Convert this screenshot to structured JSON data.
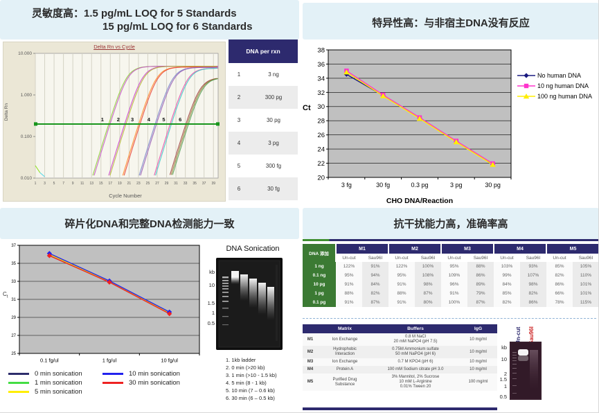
{
  "colors": {
    "title_bg": "#e3f1f7",
    "navy": "#2d2a6e",
    "green_cell": "#3b7a33",
    "threshold_green": "#18951c",
    "plot_gray": "#c0c0c0",
    "amp_bg": "#f7f6ee"
  },
  "quad_tl": {
    "title1": "灵敏度高：1.5 pg/mL LOQ for 5 Standards",
    "title2": "15 pg/mL LOQ for 6 Standards",
    "dna_table": {
      "header": "DNA per rxn",
      "rows": [
        {
          "num": "1",
          "amt": "3 ng"
        },
        {
          "num": "2",
          "amt": "300 pg"
        },
        {
          "num": "3",
          "amt": "30 pg"
        },
        {
          "num": "4",
          "amt": "3 pg"
        },
        {
          "num": "5",
          "amt": "300 fg"
        },
        {
          "num": "6",
          "amt": "30 fg"
        }
      ]
    }
  },
  "quad_tr": {
    "title": "特异性高：与非宿主DNA没有反应"
  },
  "quad_bl": {
    "title": "碎片化DNA和完整DNA检测能力一致",
    "gel": {
      "title": "DNA Sonication",
      "kb_labels": [
        "kb",
        "10",
        "1.5",
        "1",
        "0.5"
      ],
      "caption": [
        "1. 1kb ladder",
        "2. 0 min (>20 kb)",
        "3. 1 min (>10 - 1.5 kb)",
        "4. 5 min (8 - 1 kb)",
        "5. 10 min (7 – 0.6 kb)",
        "6. 30 min (6 – 0.5 kb)"
      ]
    }
  },
  "quad_br": {
    "title": "抗干扰能力高，准确率高",
    "interference_table": {
      "corner": "DNA 添加",
      "groups": [
        "M1",
        "M2",
        "M3",
        "M4",
        "M5"
      ],
      "subcols": [
        "Un-cut",
        "Sau96I"
      ],
      "rows": [
        {
          "label": "1 ng",
          "values": [
            "122%",
            "91%",
            "122%",
            "100%",
            "95%",
            "88%",
            "103%",
            "93%",
            "85%",
            "105%"
          ]
        },
        {
          "label": "0.1 ng",
          "values": [
            "95%",
            "94%",
            "95%",
            "108%",
            "109%",
            "86%",
            "99%",
            "107%",
            "82%",
            "110%"
          ]
        },
        {
          "label": "10 pg",
          "values": [
            "91%",
            "84%",
            "91%",
            "98%",
            "96%",
            "89%",
            "84%",
            "98%",
            "86%",
            "101%"
          ]
        },
        {
          "label": "1 pg",
          "values": [
            "88%",
            "82%",
            "88%",
            "87%",
            "91%",
            "79%",
            "85%",
            "82%",
            "66%",
            "101%"
          ]
        },
        {
          "label": "0.1 pg",
          "values": [
            "91%",
            "87%",
            "91%",
            "80%",
            "100%",
            "87%",
            "82%",
            "86%",
            "78%",
            "115%"
          ]
        }
      ]
    },
    "matrix_table": {
      "headers": [
        "",
        "Matrix",
        "Buffers",
        "IgG"
      ],
      "rows": [
        {
          "id": "M1",
          "matrix": "Ion Exchange",
          "buffers": "0.8 M NaCl\n20 mM NaPO4 (pH 7.5)",
          "igg": "10 mg/ml"
        },
        {
          "id": "M2",
          "matrix": "Hydrophobic\nInteraction",
          "buffers": "0.75M Ammonium sulfate\n50 mM NaPO4 (pH 6)",
          "igg": "10 mg/ml"
        },
        {
          "id": "M3",
          "matrix": "Ion Exchange",
          "buffers": "0.7 M KPO4 (pH 6)",
          "igg": "10 mg/ml"
        },
        {
          "id": "M4",
          "matrix": "Protein A",
          "buffers": "100 mM Sodium citrate pH 3.0",
          "igg": "10 mg/ml"
        },
        {
          "id": "M5",
          "matrix": "Purified Drug\nSubstance",
          "buffers": "3% Mannitol, 2% Sucrose\n10 mM L-Arginine\n0.01% Tween 20",
          "igg": "100 mg/ml"
        }
      ]
    },
    "gel": {
      "lane_labels": [
        "Un-cut",
        "Sau96I"
      ],
      "lane_label_colors": [
        "#2d2a6e",
        "#cc2222"
      ],
      "kb_labels": [
        "kb",
        "10",
        "2",
        "1.5",
        "1",
        "0.5"
      ]
    }
  },
  "chart_data": [
    {
      "id": "amplification",
      "type": "line",
      "title": "Delta Rn vs Cycle",
      "xlabel": "Cycle Number",
      "ylabel": "Delta Rn",
      "x_range": [
        1,
        40
      ],
      "x_ticks": [
        1,
        3,
        5,
        7,
        9,
        11,
        13,
        15,
        17,
        19,
        21,
        23,
        25,
        27,
        29,
        31,
        33,
        35,
        37,
        39
      ],
      "y_ticks": [
        "10.000",
        "1.000",
        "0.100",
        "0.010"
      ],
      "y_log_range": [
        -2,
        1
      ],
      "threshold": 0.2,
      "groups": [
        {
          "label": "1",
          "ct": 16.8,
          "plateau": 4.9,
          "colors": [
            "#8fce3a",
            "#c757c7"
          ]
        },
        {
          "label": "2",
          "ct": 20.2,
          "plateau": 4.9,
          "colors": [
            "#cc43cc",
            "#b5b937"
          ]
        },
        {
          "label": "3",
          "ct": 23.2,
          "plateau": 4.7,
          "colors": [
            "#ff8c2a",
            "#e8453a"
          ]
        },
        {
          "label": "4",
          "ct": 26.7,
          "plateau": 4.6,
          "colors": [
            "#7a86c9",
            "#9a5fb5"
          ]
        },
        {
          "label": "5",
          "ct": 29.9,
          "plateau": 4.4,
          "colors": [
            "#e84fa8",
            "#3fc9c9"
          ]
        },
        {
          "label": "6",
          "ct": 33.4,
          "plateau": 2.6,
          "colors": [
            "#a04343",
            "#8f7a2e",
            "#55a055"
          ]
        }
      ],
      "artifacts": [
        {
          "color": "#9ae234",
          "points": [
            [
              1,
              0.02
            ],
            [
              2,
              0.0135
            ]
          ]
        },
        {
          "color": "#66d9e8",
          "points": [
            [
              2,
              0.0135
            ],
            [
              3,
              0.0108
            ]
          ]
        }
      ]
    },
    {
      "id": "specificity",
      "type": "line",
      "categories": [
        "3 fg",
        "30 fg",
        "0.3 pg",
        "3 pg",
        "30 pg"
      ],
      "series": [
        {
          "name": "No human DNA",
          "color": "#1a1a80",
          "marker": "diamond",
          "values": [
            34.55,
            31.55,
            28.35,
            25.05,
            21.85
          ]
        },
        {
          "name": "10 ng human DNA",
          "color": "#ff33cc",
          "marker": "square",
          "values": [
            35.05,
            31.65,
            28.45,
            25.15,
            21.95
          ]
        },
        {
          "name": "100 ng human DNA",
          "color": "#ffee00",
          "marker": "triangle",
          "values": [
            34.85,
            31.5,
            28.3,
            25.0,
            21.8
          ]
        }
      ],
      "xlabel": "CHO DNA/Reaction",
      "ylabel": "Ct",
      "ylim": [
        20,
        38
      ],
      "ytick_step": 2,
      "legend_position": "right"
    },
    {
      "id": "sonication",
      "type": "line",
      "categories": [
        "0.1 fg/ul",
        "1 fg/ul",
        "10 fg/ul"
      ],
      "series": [
        {
          "name": "0 min sonication",
          "color": "#2d2d6b",
          "values": [
            36.0,
            33.0,
            29.5
          ]
        },
        {
          "name": "1 min sonication",
          "color": "#44dd44",
          "values": [
            36.0,
            33.0,
            29.5
          ]
        },
        {
          "name": "5 min sonication",
          "color": "#ffee00",
          "values": [
            36.0,
            33.0,
            29.5
          ]
        },
        {
          "name": "10 min sonication",
          "color": "#2222ee",
          "marker": "diamond",
          "values": [
            36.1,
            33.05,
            29.6
          ]
        },
        {
          "name": "30 min sonication",
          "color": "#ee2222",
          "marker": "diamond",
          "values": [
            35.85,
            32.9,
            29.4
          ]
        }
      ],
      "ylabel": "Ct",
      "ylim": [
        25,
        37
      ],
      "ytick_step": 2,
      "legend_columns": [
        [
          0,
          1,
          2
        ],
        [
          3,
          4
        ]
      ],
      "legend_position": "bottom"
    }
  ]
}
